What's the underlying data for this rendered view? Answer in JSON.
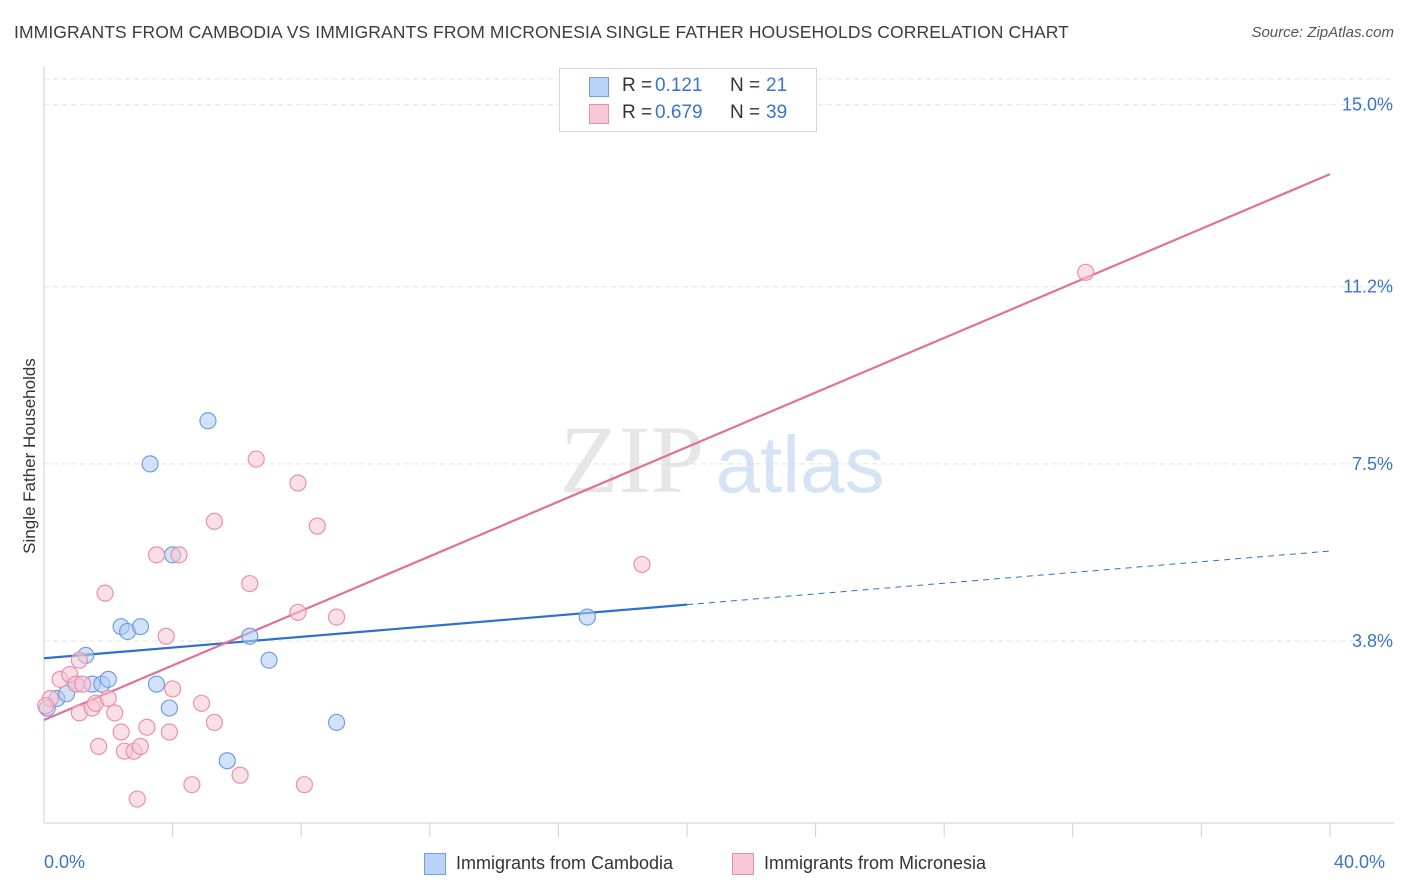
{
  "title": "IMMIGRANTS FROM CAMBODIA VS IMMIGRANTS FROM MICRONESIA SINGLE FATHER HOUSEHOLDS CORRELATION CHART",
  "source": "Source: ZipAtlas.com",
  "watermark": {
    "zip": "ZIP",
    "atlas": "atlas"
  },
  "legend": {
    "r_label": "R =",
    "n_label": "N =",
    "rows": [
      {
        "r": "0.121",
        "n": "21"
      },
      {
        "r": "0.679",
        "n": "39"
      }
    ]
  },
  "chart_data": {
    "type": "scatter",
    "title": "IMMIGRANTS FROM CAMBODIA VS IMMIGRANTS FROM MICRONESIA SINGLE FATHER HOUSEHOLDS CORRELATION CHART",
    "xlabel": "",
    "ylabel": "Single Father Households",
    "xlim": [
      0,
      40
    ],
    "ylim": [
      0,
      15.6
    ],
    "x_tick_labels": [
      "0.0%",
      "40.0%"
    ],
    "y_ticks": [
      3.8,
      7.5,
      11.2,
      15.0
    ],
    "y_tick_labels": [
      "3.8%",
      "7.5%",
      "11.2%",
      "15.0%"
    ],
    "grid": true,
    "legend_position": "top-center",
    "series": [
      {
        "name": "Immigrants from Cambodia",
        "color": "#6f9fe0",
        "fill": "#aecbf3",
        "line_color": "#2f6fcf",
        "points": [
          [
            0.1,
            2.4
          ],
          [
            0.4,
            2.6
          ],
          [
            0.7,
            2.7
          ],
          [
            1.0,
            2.9
          ],
          [
            1.3,
            3.5
          ],
          [
            1.5,
            2.9
          ],
          [
            1.8,
            2.9
          ],
          [
            2.0,
            3.0
          ],
          [
            2.4,
            4.1
          ],
          [
            2.6,
            4.0
          ],
          [
            3.0,
            4.1
          ],
          [
            3.5,
            2.9
          ],
          [
            3.9,
            2.4
          ],
          [
            3.3,
            7.5
          ],
          [
            4.0,
            5.6
          ],
          [
            5.1,
            8.4
          ],
          [
            5.7,
            1.3
          ],
          [
            6.4,
            3.9
          ],
          [
            7.0,
            3.4
          ],
          [
            9.1,
            2.1
          ],
          [
            16.9,
            4.3
          ]
        ],
        "trend": {
          "x0": 0,
          "y0": 3.44,
          "x1": 20.0,
          "y1": 4.56,
          "dash_to_x": 40,
          "dash_to_y": 5.68
        }
      },
      {
        "name": "Immigrants from Micronesia",
        "color": "#ec8fae",
        "fill": "#f8c4d4",
        "line_color": "#e0709a",
        "points": [
          [
            0.2,
            2.6
          ],
          [
            0.5,
            3.0
          ],
          [
            0.8,
            3.1
          ],
          [
            1.0,
            2.9
          ],
          [
            1.1,
            3.4
          ],
          [
            1.2,
            2.9
          ],
          [
            1.1,
            2.3
          ],
          [
            1.5,
            2.4
          ],
          [
            1.6,
            2.5
          ],
          [
            1.7,
            1.6
          ],
          [
            1.9,
            4.8
          ],
          [
            2.0,
            2.6
          ],
          [
            2.2,
            2.3
          ],
          [
            2.4,
            1.9
          ],
          [
            2.5,
            1.5
          ],
          [
            2.8,
            1.5
          ],
          [
            2.9,
            0.5
          ],
          [
            3.0,
            1.6
          ],
          [
            3.2,
            2.0
          ],
          [
            3.5,
            5.6
          ],
          [
            3.8,
            3.9
          ],
          [
            3.9,
            1.9
          ],
          [
            4.0,
            2.8
          ],
          [
            4.2,
            5.6
          ],
          [
            4.6,
            0.8
          ],
          [
            4.9,
            2.5
          ],
          [
            5.3,
            2.1
          ],
          [
            5.3,
            6.3
          ],
          [
            6.1,
            1.0
          ],
          [
            6.4,
            5.0
          ],
          [
            6.6,
            7.6
          ],
          [
            7.9,
            7.1
          ],
          [
            7.9,
            4.4
          ],
          [
            8.1,
            0.8
          ],
          [
            8.5,
            6.2
          ],
          [
            9.1,
            4.3
          ],
          [
            18.6,
            5.4
          ],
          [
            32.4,
            11.5
          ],
          [
            0.05,
            2.45
          ]
        ],
        "trend": {
          "x0": 0,
          "y0": 2.15,
          "x1": 40,
          "y1": 13.55
        }
      }
    ]
  },
  "bottom_legend": [
    "Immigrants from Cambodia",
    "Immigrants from Micronesia"
  ]
}
